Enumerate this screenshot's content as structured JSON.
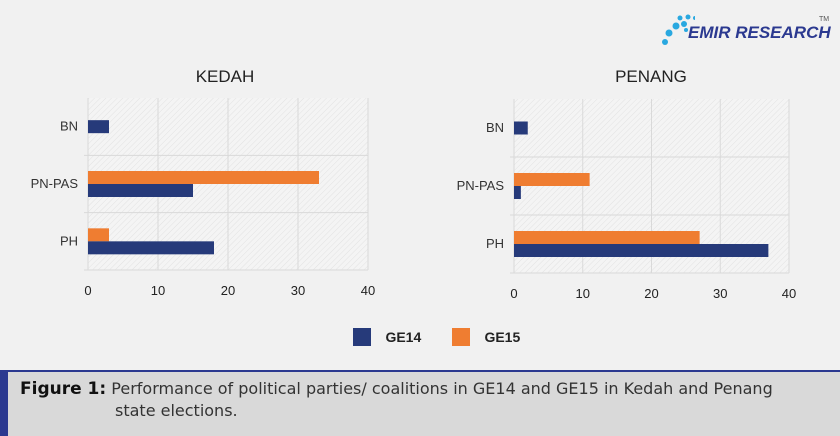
{
  "brand": {
    "name": "EMIR RESEARCH",
    "tm": "TM"
  },
  "colors": {
    "GE14": "#263a7a",
    "GE15": "#ef7d31",
    "grid": "#d9d9d9"
  },
  "legend": [
    "GE14",
    "GE15"
  ],
  "chart_data": [
    {
      "type": "bar",
      "orientation": "horizontal",
      "title": "KEDAH",
      "categories": [
        "BN",
        "PN-PAS",
        "PH"
      ],
      "series": [
        {
          "name": "GE14",
          "values": [
            3,
            15,
            18
          ]
        },
        {
          "name": "GE15",
          "values": [
            0,
            33,
            3
          ]
        }
      ],
      "xlim": [
        0,
        40
      ],
      "xticks": [
        0,
        10,
        20,
        30,
        40
      ],
      "grid": true,
      "legend": "bottom"
    },
    {
      "type": "bar",
      "orientation": "horizontal",
      "title": "PENANG",
      "categories": [
        "BN",
        "PN-PAS",
        "PH"
      ],
      "series": [
        {
          "name": "GE14",
          "values": [
            2,
            1,
            37
          ]
        },
        {
          "name": "GE15",
          "values": [
            0,
            11,
            27
          ]
        }
      ],
      "xlim": [
        0,
        40
      ],
      "xticks": [
        0,
        10,
        20,
        30,
        40
      ],
      "grid": true,
      "legend": "bottom"
    }
  ],
  "caption": {
    "label": "Figure 1:",
    "line1": "Performance of political parties/ coalitions in GE14 and GE15 in Kedah and Penang",
    "line2": "state elections."
  }
}
